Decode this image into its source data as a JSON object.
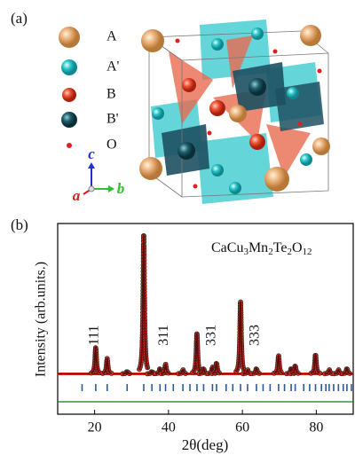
{
  "panel_a": {
    "label": "(a)",
    "legend": [
      "A",
      "A'",
      "B",
      "B'",
      "O"
    ],
    "axes": [
      "c",
      "a",
      "b"
    ]
  },
  "chart_data": {
    "type": "xrd",
    "label": "(b)",
    "formula": "CaCu3Mn2Te2O12",
    "x_label": "2θ(deg)",
    "y_label": "Intensity (arb.units.)",
    "x": [
      20.3,
      23.4,
      28.8,
      33.3,
      35.5,
      37.7,
      39.2,
      43.9,
      47.7,
      49.5,
      51.9,
      53.0,
      59.5,
      61.4,
      63.8,
      69.8,
      73.2,
      74.3,
      79.8,
      83.5,
      86.0,
      88.3
    ],
    "values": [
      19,
      11,
      2,
      100,
      2,
      4,
      7,
      3,
      29,
      4,
      5,
      8,
      52,
      3,
      4,
      13,
      4,
      6,
      14,
      3,
      3,
      4
    ],
    "bragg_positions": [
      16.6,
      20.3,
      23.4,
      28.8,
      33.3,
      35.5,
      37.7,
      39.2,
      41.3,
      43.9,
      45.8,
      47.7,
      49.5,
      51.9,
      53.0,
      55.6,
      57.4,
      59.5,
      61.4,
      63.8,
      65.6,
      67.5,
      69.8,
      71.4,
      73.2,
      74.3,
      76.6,
      78.2,
      79.8,
      81.4,
      82.6,
      83.5,
      84.7,
      86.0,
      87.3,
      88.3,
      89.5
    ],
    "peak_labels": [
      {
        "label": "111",
        "x": 20.3
      },
      {
        "label": "311",
        "x": 39.2
      },
      {
        "label": "331",
        "x": 52.0
      },
      {
        "label": "333",
        "x": 63.8
      }
    ],
    "xlim": [
      10,
      90
    ],
    "ylim": [
      -29,
      108
    ],
    "xticks": [
      20,
      40,
      60,
      80
    ],
    "observed_color": "#d42a1c",
    "calculated_color": "#5a0a0a",
    "bragg_color": "#2a5a9a",
    "difference_color": "#1a7a1a"
  }
}
